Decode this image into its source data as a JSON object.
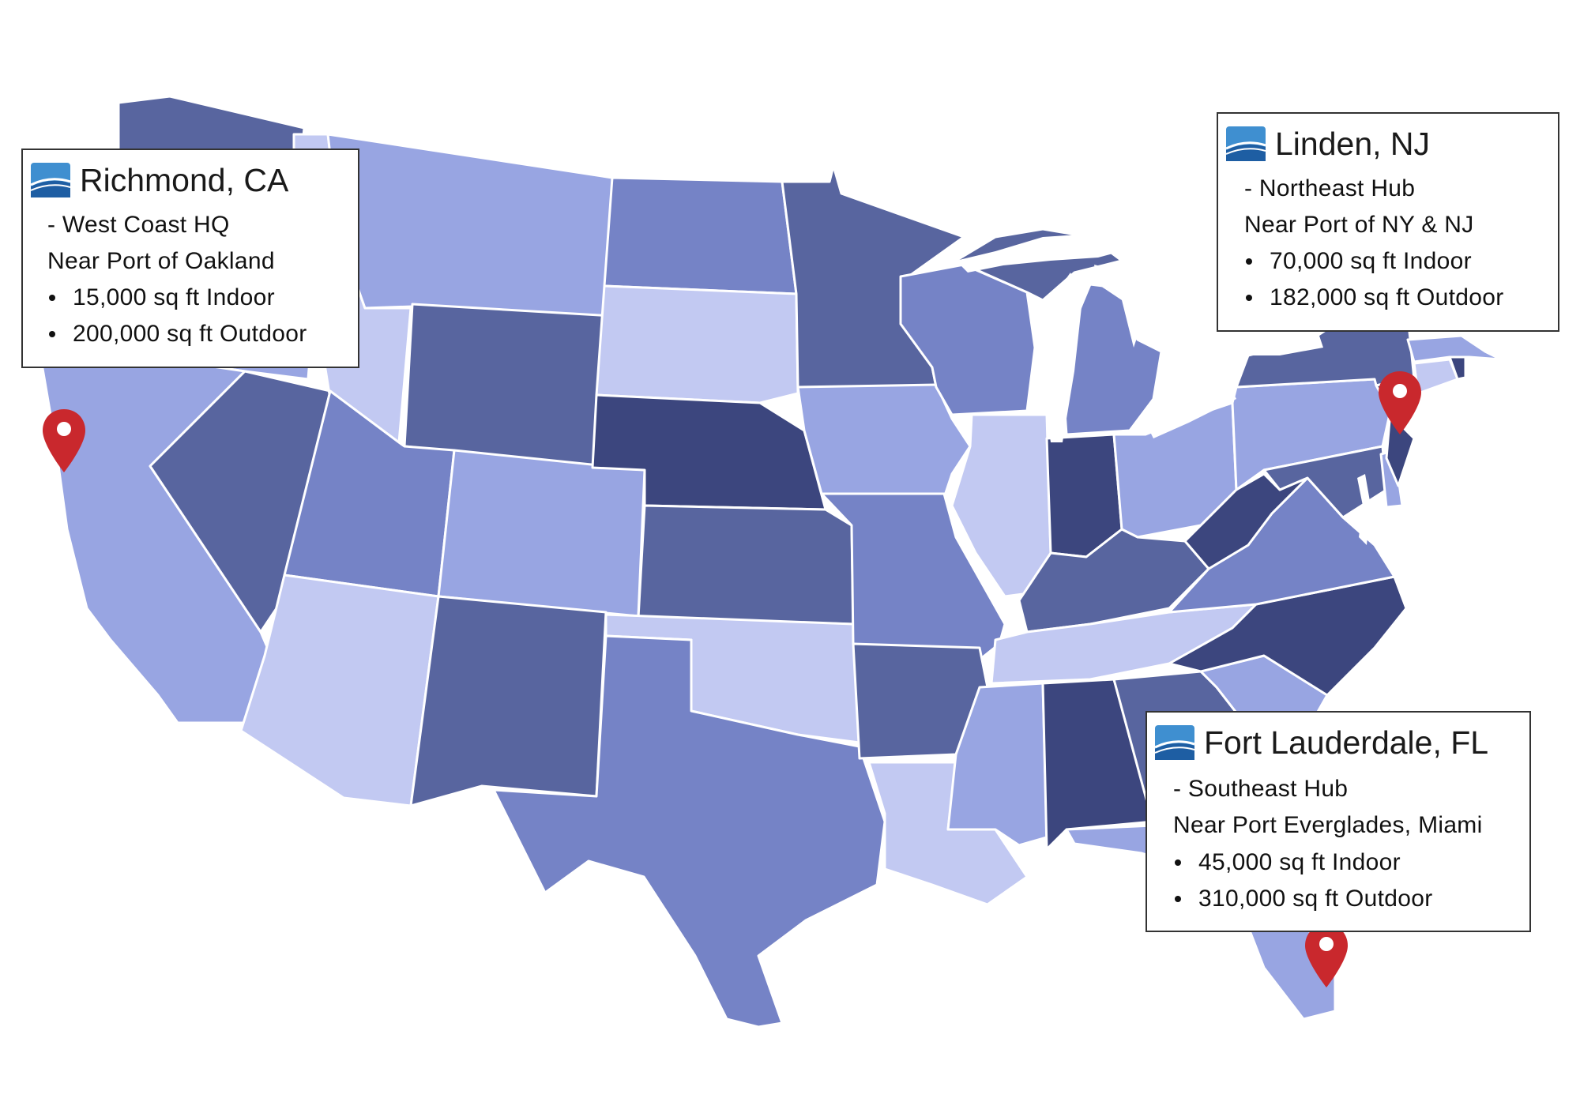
{
  "colors": {
    "scale": [
      "#c2c9f2",
      "#98a5e2",
      "#7583c6",
      "#58659f",
      "#3c467e"
    ],
    "pin": "#c9282d",
    "logo_top": "#3f8fd0",
    "logo_bottom": "#1e5ea3"
  },
  "icons": {
    "pin": "map-pin-icon",
    "logo": "company-logo-icon"
  },
  "locations": [
    {
      "title": "Richmond, CA",
      "role": "- West Coast HQ",
      "port": "Near Port of Oakland",
      "indoor": "15,000 sq ft Indoor",
      "outdoor": "200,000 sq ft Outdoor"
    },
    {
      "title": "Linden, NJ",
      "role": "- Northeast Hub",
      "port": "Near Port of NY & NJ",
      "indoor": "70,000 sq ft Indoor",
      "outdoor": "182,000 sq ft Outdoor"
    },
    {
      "title": "Fort Lauderdale, FL",
      "role": "- Southeast Hub",
      "port": "Near Port Everglades, Miami",
      "indoor": "45,000 sq ft Indoor",
      "outdoor": "310,000 sq ft Outdoor"
    }
  ]
}
